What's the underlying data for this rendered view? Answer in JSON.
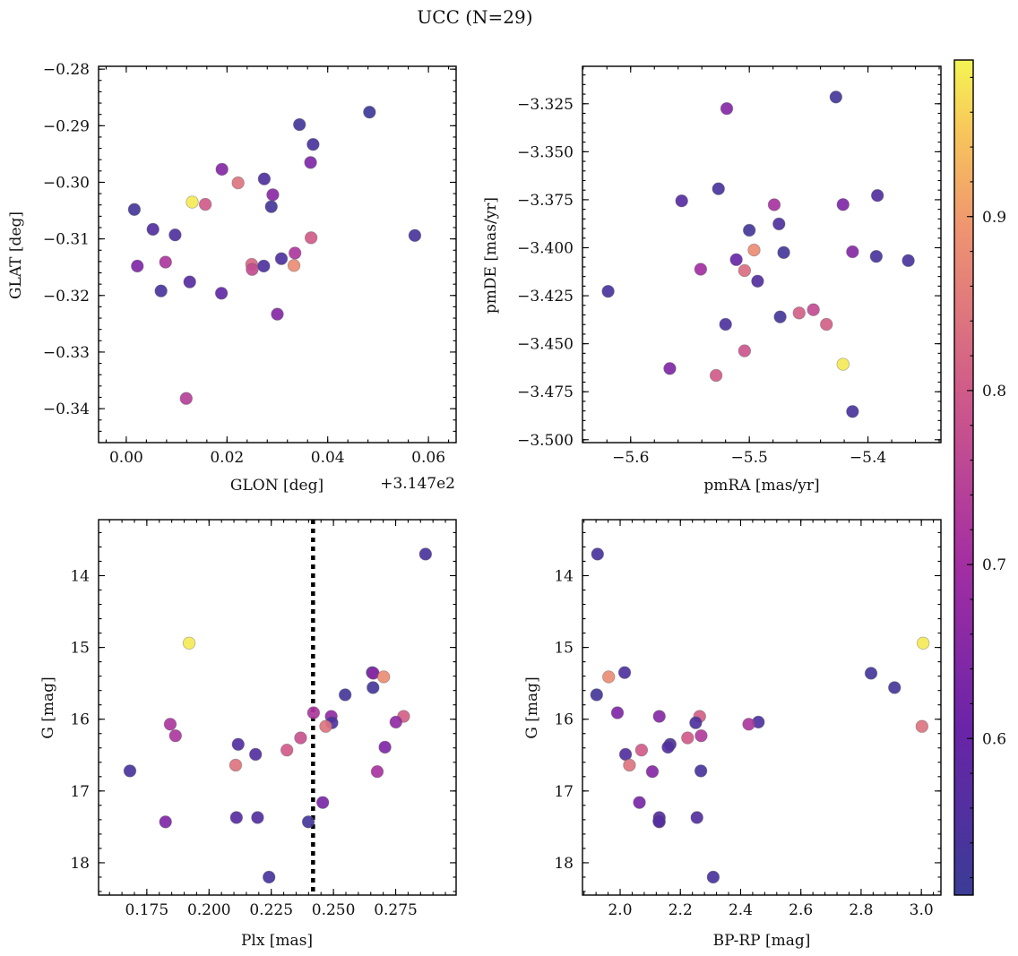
{
  "figure": {
    "title": "UCC (N=29)"
  },
  "colorbar": {
    "cmap": "plasma",
    "range": [
      0.51,
      0.99
    ],
    "ticks": [
      0.6,
      0.7,
      0.8,
      0.9
    ]
  },
  "chart_data": [
    {
      "type": "scatter",
      "id": "glon-glat",
      "xlabel": "GLON [deg]",
      "ylabel": "GLAT [deg]",
      "x_offset_label": "+3.147e2",
      "xlim": [
        -0.0055,
        0.0655
      ],
      "ylim": [
        -0.346,
        -0.2795
      ],
      "xticks": [
        0.0,
        0.02,
        0.04,
        0.06
      ],
      "xtick_labels": [
        "0.00",
        "0.02",
        "0.04",
        "0.06"
      ],
      "yticks": [
        -0.28,
        -0.29,
        -0.3,
        -0.31,
        -0.32,
        -0.33,
        -0.34
      ],
      "ytick_labels": [
        "−0.28",
        "−0.29",
        "−0.30",
        "−0.31",
        "−0.32",
        "−0.33",
        "−0.34"
      ],
      "points": [
        {
          "x": 0.0483,
          "y": -0.2876,
          "c": 0.52
        },
        {
          "x": 0.0344,
          "y": -0.2898,
          "c": 0.53
        },
        {
          "x": 0.0371,
          "y": -0.2933,
          "c": 0.54
        },
        {
          "x": 0.0366,
          "y": -0.2965,
          "c": 0.64
        },
        {
          "x": 0.019,
          "y": -0.2977,
          "c": 0.65
        },
        {
          "x": 0.0274,
          "y": -0.2994,
          "c": 0.55
        },
        {
          "x": 0.0222,
          "y": -0.3001,
          "c": 0.84
        },
        {
          "x": 0.0291,
          "y": -0.3022,
          "c": 0.66
        },
        {
          "x": 0.0131,
          "y": -0.3035,
          "c": 0.98
        },
        {
          "x": 0.0157,
          "y": -0.3039,
          "c": 0.8
        },
        {
          "x": 0.0288,
          "y": -0.3043,
          "c": 0.53
        },
        {
          "x": 0.0016,
          "y": -0.3048,
          "c": 0.53
        },
        {
          "x": 0.0053,
          "y": -0.3083,
          "c": 0.56
        },
        {
          "x": 0.0097,
          "y": -0.3093,
          "c": 0.55
        },
        {
          "x": 0.0573,
          "y": -0.3094,
          "c": 0.54
        },
        {
          "x": 0.0367,
          "y": -0.3098,
          "c": 0.8
        },
        {
          "x": 0.0335,
          "y": -0.3125,
          "c": 0.72
        },
        {
          "x": 0.0308,
          "y": -0.3135,
          "c": 0.55
        },
        {
          "x": 0.0078,
          "y": -0.3141,
          "c": 0.72
        },
        {
          "x": 0.0249,
          "y": -0.3145,
          "c": 0.82
        },
        {
          "x": 0.0333,
          "y": -0.3147,
          "c": 0.88
        },
        {
          "x": 0.0022,
          "y": -0.3148,
          "c": 0.64
        },
        {
          "x": 0.0273,
          "y": -0.3148,
          "c": 0.55
        },
        {
          "x": 0.025,
          "y": -0.3154,
          "c": 0.77
        },
        {
          "x": 0.0126,
          "y": -0.3176,
          "c": 0.57
        },
        {
          "x": 0.0069,
          "y": -0.3192,
          "c": 0.54
        },
        {
          "x": 0.0189,
          "y": -0.3196,
          "c": 0.59
        },
        {
          "x": 0.03,
          "y": -0.3233,
          "c": 0.65
        },
        {
          "x": 0.0119,
          "y": -0.3382,
          "c": 0.74
        }
      ]
    },
    {
      "type": "scatter",
      "id": "pmra-pmde",
      "xlabel": "pmRA [mas/yr]",
      "ylabel": "pmDE [mas/yr]",
      "xlim": [
        -5.6406,
        -5.3385
      ],
      "ylim": [
        -3.5015,
        -3.3055
      ],
      "xticks": [
        -5.6,
        -5.5,
        -5.4
      ],
      "xtick_labels": [
        "−5.6",
        "−5.5",
        "−5.4"
      ],
      "yticks": [
        -3.325,
        -3.35,
        -3.375,
        -3.4,
        -3.425,
        -3.45,
        -3.475,
        -3.5
      ],
      "ytick_labels": [
        "−3.325",
        "−3.350",
        "−3.375",
        "−3.400",
        "−3.425",
        "−3.450",
        "−3.475",
        "−3.500"
      ],
      "points": [
        {
          "x": -5.427,
          "y": -3.3215,
          "c": 0.53
        },
        {
          "x": -5.519,
          "y": -3.3275,
          "c": 0.65
        },
        {
          "x": -5.526,
          "y": -3.3693,
          "c": 0.54
        },
        {
          "x": -5.392,
          "y": -3.3728,
          "c": 0.56
        },
        {
          "x": -5.557,
          "y": -3.3756,
          "c": 0.57
        },
        {
          "x": -5.479,
          "y": -3.3776,
          "c": 0.71
        },
        {
          "x": -5.421,
          "y": -3.3775,
          "c": 0.64
        },
        {
          "x": -5.475,
          "y": -3.3876,
          "c": 0.55
        },
        {
          "x": -5.5,
          "y": -3.3909,
          "c": 0.53
        },
        {
          "x": -5.496,
          "y": -3.4012,
          "c": 0.88
        },
        {
          "x": -5.413,
          "y": -3.4021,
          "c": 0.65
        },
        {
          "x": -5.471,
          "y": -3.4025,
          "c": 0.53
        },
        {
          "x": -5.393,
          "y": -3.4045,
          "c": 0.54
        },
        {
          "x": -5.366,
          "y": -3.4067,
          "c": 0.54
        },
        {
          "x": -5.511,
          "y": -3.4062,
          "c": 0.6
        },
        {
          "x": -5.541,
          "y": -3.4112,
          "c": 0.7
        },
        {
          "x": -5.504,
          "y": -3.4119,
          "c": 0.83
        },
        {
          "x": -5.493,
          "y": -3.4174,
          "c": 0.56
        },
        {
          "x": -5.619,
          "y": -3.4227,
          "c": 0.54
        },
        {
          "x": -5.446,
          "y": -3.4323,
          "c": 0.77
        },
        {
          "x": -5.458,
          "y": -3.434,
          "c": 0.81
        },
        {
          "x": -5.474,
          "y": -3.436,
          "c": 0.53
        },
        {
          "x": -5.435,
          "y": -3.4399,
          "c": 0.81
        },
        {
          "x": -5.52,
          "y": -3.4399,
          "c": 0.55
        },
        {
          "x": -5.504,
          "y": -3.4537,
          "c": 0.79
        },
        {
          "x": -5.421,
          "y": -3.4607,
          "c": 0.98
        },
        {
          "x": -5.567,
          "y": -3.4629,
          "c": 0.64
        },
        {
          "x": -5.528,
          "y": -3.4665,
          "c": 0.8
        },
        {
          "x": -5.413,
          "y": -3.4853,
          "c": 0.54
        }
      ]
    },
    {
      "type": "scatter",
      "id": "plx-g",
      "xlabel": "Plx [mas]",
      "ylabel": "G [mag]",
      "xlim": [
        0.1556,
        0.2993
      ],
      "ylim": [
        18.45,
        13.22
      ],
      "y_inverted": true,
      "xticks": [
        0.175,
        0.2,
        0.225,
        0.25,
        0.275
      ],
      "xtick_labels": [
        "0.175",
        "0.200",
        "0.225",
        "0.250",
        "0.275"
      ],
      "yticks": [
        14,
        15,
        16,
        17,
        18
      ],
      "ytick_labels": [
        "14",
        "15",
        "16",
        "17",
        "18"
      ],
      "vline": {
        "x": 0.2418,
        "style": "dotted"
      },
      "points": [
        {
          "x": 0.287,
          "y": 13.7,
          "c": 0.54
        },
        {
          "x": 0.192,
          "y": 14.94,
          "c": 0.98
        },
        {
          "x": 0.2656,
          "y": 15.35,
          "c": 0.55
        },
        {
          "x": 0.266,
          "y": 15.36,
          "c": 0.66
        },
        {
          "x": 0.2702,
          "y": 15.41,
          "c": 0.88
        },
        {
          "x": 0.2659,
          "y": 15.56,
          "c": 0.53
        },
        {
          "x": 0.2547,
          "y": 15.66,
          "c": 0.53
        },
        {
          "x": 0.242,
          "y": 15.91,
          "c": 0.72
        },
        {
          "x": 0.2491,
          "y": 15.96,
          "c": 0.67
        },
        {
          "x": 0.2782,
          "y": 15.96,
          "c": 0.81
        },
        {
          "x": 0.2751,
          "y": 16.04,
          "c": 0.67
        },
        {
          "x": 0.2494,
          "y": 16.05,
          "c": 0.55
        },
        {
          "x": 0.1844,
          "y": 16.07,
          "c": 0.72
        },
        {
          "x": 0.2469,
          "y": 16.1,
          "c": 0.84
        },
        {
          "x": 0.1865,
          "y": 16.23,
          "c": 0.72
        },
        {
          "x": 0.2368,
          "y": 16.26,
          "c": 0.78
        },
        {
          "x": 0.2117,
          "y": 16.35,
          "c": 0.56
        },
        {
          "x": 0.2707,
          "y": 16.39,
          "c": 0.64
        },
        {
          "x": 0.2313,
          "y": 16.43,
          "c": 0.8
        },
        {
          "x": 0.2187,
          "y": 16.49,
          "c": 0.56
        },
        {
          "x": 0.2107,
          "y": 16.64,
          "c": 0.84
        },
        {
          "x": 0.1682,
          "y": 16.72,
          "c": 0.54
        },
        {
          "x": 0.2676,
          "y": 16.73,
          "c": 0.71
        },
        {
          "x": 0.2457,
          "y": 17.16,
          "c": 0.63
        },
        {
          "x": 0.211,
          "y": 17.37,
          "c": 0.57
        },
        {
          "x": 0.2195,
          "y": 17.37,
          "c": 0.56
        },
        {
          "x": 0.1825,
          "y": 17.43,
          "c": 0.64
        },
        {
          "x": 0.2399,
          "y": 17.43,
          "c": 0.53
        },
        {
          "x": 0.2241,
          "y": 18.2,
          "c": 0.54
        }
      ]
    },
    {
      "type": "scatter",
      "id": "bprp-g",
      "xlabel": "BP-RP [mag]",
      "ylabel": "G [mag]",
      "xlim": [
        1.875,
        3.065
      ],
      "ylim": [
        18.45,
        13.22
      ],
      "y_inverted": true,
      "xticks": [
        2.0,
        2.2,
        2.4,
        2.6,
        2.8,
        3.0
      ],
      "xtick_labels": [
        "2.0",
        "2.2",
        "2.4",
        "2.6",
        "2.8",
        "3.0"
      ],
      "yticks": [
        14,
        15,
        16,
        17,
        18
      ],
      "ytick_labels": [
        "14",
        "15",
        "16",
        "17",
        "18"
      ],
      "points": [
        {
          "x": 1.925,
          "y": 13.7,
          "c": 0.54
        },
        {
          "x": 3.006,
          "y": 14.94,
          "c": 0.98
        },
        {
          "x": 2.015,
          "y": 15.35,
          "c": 0.55
        },
        {
          "x": 2.833,
          "y": 15.36,
          "c": 0.53
        },
        {
          "x": 1.962,
          "y": 15.41,
          "c": 0.88
        },
        {
          "x": 2.911,
          "y": 15.56,
          "c": 0.53
        },
        {
          "x": 1.922,
          "y": 15.66,
          "c": 0.53
        },
        {
          "x": 1.991,
          "y": 15.91,
          "c": 0.64
        },
        {
          "x": 2.13,
          "y": 15.96,
          "c": 0.65
        },
        {
          "x": 2.264,
          "y": 15.96,
          "c": 0.81
        },
        {
          "x": 2.459,
          "y": 16.04,
          "c": 0.55
        },
        {
          "x": 2.251,
          "y": 16.05,
          "c": 0.55
        },
        {
          "x": 2.427,
          "y": 16.07,
          "c": 0.72
        },
        {
          "x": 3.002,
          "y": 16.1,
          "c": 0.84
        },
        {
          "x": 2.269,
          "y": 16.23,
          "c": 0.73
        },
        {
          "x": 2.224,
          "y": 16.26,
          "c": 0.8
        },
        {
          "x": 2.166,
          "y": 16.35,
          "c": 0.55
        },
        {
          "x": 2.159,
          "y": 16.39,
          "c": 0.56
        },
        {
          "x": 2.071,
          "y": 16.43,
          "c": 0.8
        },
        {
          "x": 2.018,
          "y": 16.49,
          "c": 0.56
        },
        {
          "x": 2.031,
          "y": 16.64,
          "c": 0.84
        },
        {
          "x": 2.268,
          "y": 16.72,
          "c": 0.54
        },
        {
          "x": 2.107,
          "y": 16.73,
          "c": 0.65
        },
        {
          "x": 2.064,
          "y": 17.16,
          "c": 0.63
        },
        {
          "x": 2.13,
          "y": 17.37,
          "c": 0.57
        },
        {
          "x": 2.255,
          "y": 17.37,
          "c": 0.56
        },
        {
          "x": 2.13,
          "y": 17.43,
          "c": 0.63
        },
        {
          "x": 2.129,
          "y": 17.42,
          "c": 0.56
        },
        {
          "x": 2.309,
          "y": 18.2,
          "c": 0.54
        }
      ]
    }
  ]
}
